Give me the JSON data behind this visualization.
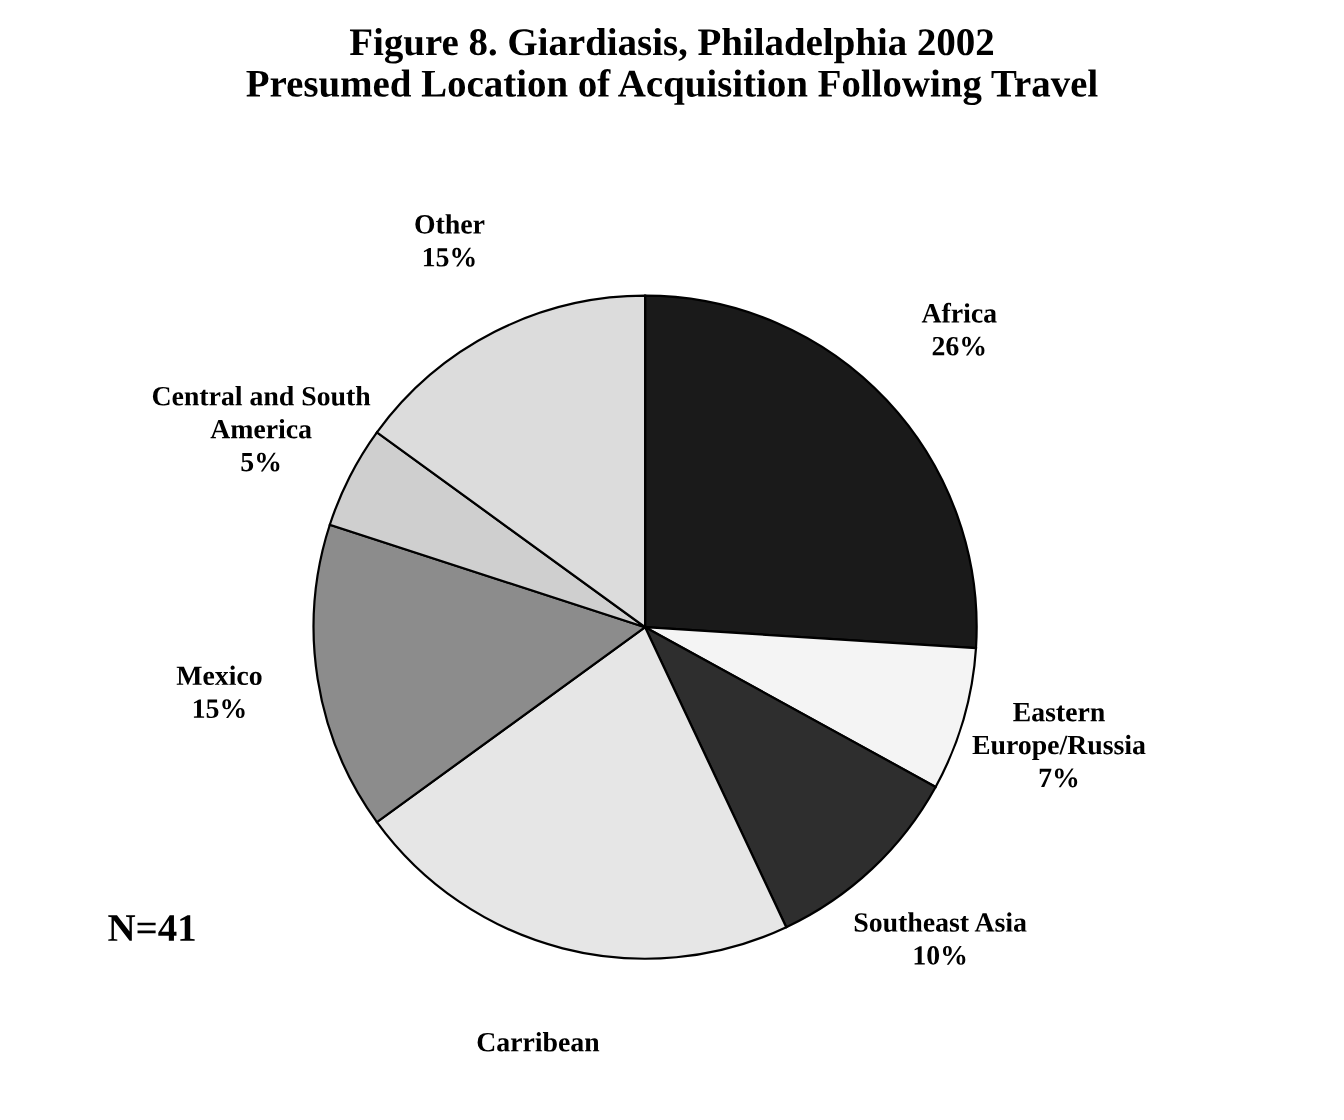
{
  "chart_data": {
    "type": "pie",
    "title": "Figure 8. Giardiasis, Philadelphia 2002\nPresumed Location of Acquisition Following Travel",
    "categories": [
      "Africa",
      "Eastern\nEurope/Russia",
      "Southeast Asia",
      "Carribean",
      "Mexico",
      "Central and South\nAmerica",
      "Other"
    ],
    "values": [
      26,
      7,
      10,
      22,
      15,
      5,
      15
    ],
    "value_labels": [
      "26%",
      "7%",
      "10%",
      null,
      "15%",
      "5%",
      "15%"
    ],
    "colors": [
      "#1a1a1a",
      "#f4f4f4",
      "#2e2e2e",
      "#e6e6e6",
      "#8c8c8c",
      "#cfcfcf",
      "#dcdcdc"
    ],
    "annotations": [
      "N=41"
    ]
  }
}
